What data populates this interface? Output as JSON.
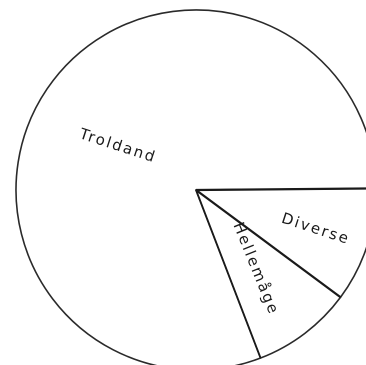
{
  "chart_data": {
    "type": "pie",
    "title": "",
    "slices": [
      {
        "label": "Troldand",
        "value": 80.7
      },
      {
        "label": "Diverse",
        "value": 10.3
      },
      {
        "label": "Hellemåge",
        "value": 9.0
      }
    ],
    "legend": "none",
    "style": "hand-drawn outline, labels written inside slices"
  }
}
